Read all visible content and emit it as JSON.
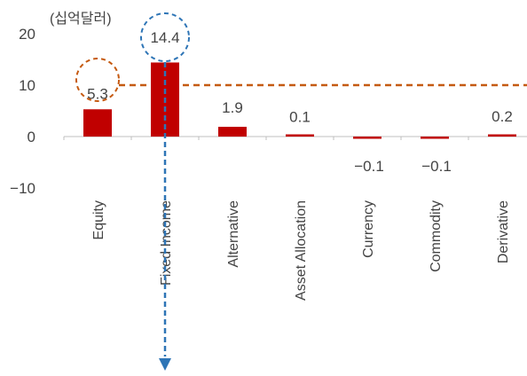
{
  "chart_data": {
    "type": "bar",
    "unit_label": "(십억달러)",
    "categories": [
      "Equity",
      "Fixed Income",
      "Alternative",
      "Asset Allocation",
      "Currency",
      "Commodity",
      "Derivative"
    ],
    "values": [
      5.3,
      14.4,
      1.9,
      0.1,
      -0.1,
      -0.1,
      0.2
    ],
    "data_labels": [
      "5.3",
      "14.4",
      "1.9",
      "0.1",
      "−0.1",
      "−0.1",
      "0.2"
    ],
    "y_ticks": [
      20,
      10,
      0,
      -10
    ],
    "y_tick_labels": [
      "20",
      "10",
      "0",
      "−10"
    ],
    "ylim": [
      -10,
      20
    ],
    "bar_color": "#c00000",
    "reference_line": {
      "value": 10,
      "color": "#c55a11",
      "style": "dashed"
    },
    "highlights": [
      {
        "category": "Equity",
        "color": "#c55a11"
      },
      {
        "category": "Fixed Income",
        "color": "#2e75b6",
        "arrow": "down"
      }
    ],
    "grid": false,
    "legend": "none"
  }
}
